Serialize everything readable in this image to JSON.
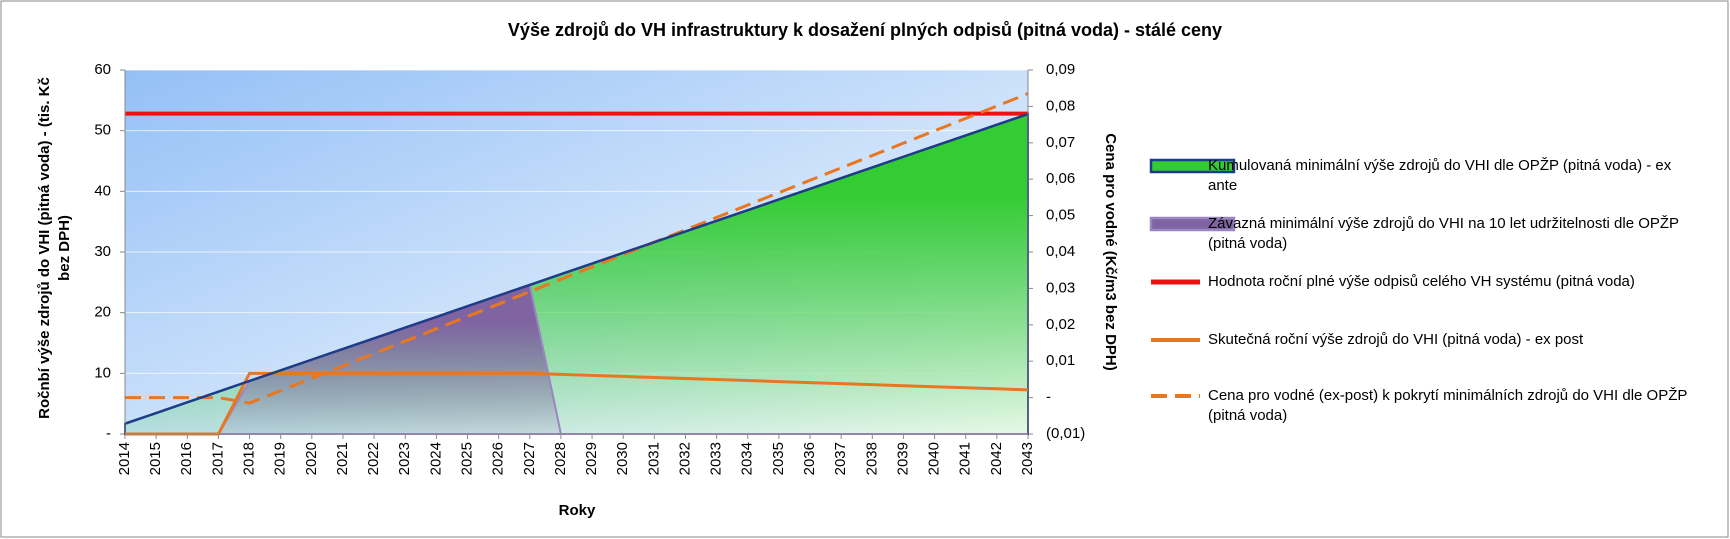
{
  "chart_data": {
    "type": "combo",
    "title": "Výše zdrojů do VH infrastruktury k dosažení plných odpisů (pitná voda) - stálé ceny",
    "x_label": "Roky",
    "y_label": "Ročnbí výše zdrojů do VHI  (pitná voda) - (tis. Kč bez DPH)",
    "y2_label": "Cena pro vodné  (Kč/m3 bez DPH)",
    "categories": [
      "2014",
      "2015",
      "2016",
      "2017",
      "2018",
      "2019",
      "2020",
      "2021",
      "2022",
      "2023",
      "2024",
      "2025",
      "2026",
      "2027",
      "2028",
      "2029",
      "2030",
      "2031",
      "2032",
      "2033",
      "2034",
      "2035",
      "2036",
      "2037",
      "2038",
      "2039",
      "2040",
      "2041",
      "2042",
      "2043"
    ],
    "ylim": [
      0,
      60
    ],
    "yticks": [
      {
        "value": 0,
        "label": "-"
      },
      10,
      20,
      30,
      40,
      50,
      60
    ],
    "y2lim": [
      -0.01,
      0.09
    ],
    "y2ticks": [
      {
        "value": -0.01,
        "label": "(0,01)"
      },
      {
        "value": 0,
        "label": "-"
      },
      {
        "value": 0.01,
        "label": "0,01"
      },
      {
        "value": 0.02,
        "label": "0,02"
      },
      {
        "value": 0.03,
        "label": "0,03"
      },
      {
        "value": 0.04,
        "label": "0,04"
      },
      {
        "value": 0.05,
        "label": "0,05"
      },
      {
        "value": 0.06,
        "label": "0,06"
      },
      {
        "value": 0.07,
        "label": "0,07"
      },
      {
        "value": 0.08,
        "label": "0,08"
      },
      {
        "value": 0.09,
        "label": "0,09"
      }
    ],
    "grid": true,
    "legend": "right",
    "series": [
      {
        "name": "Kumulovaná minimální výše zdrojů do VHI dle OPŽP (pitná voda) - ex ante",
        "type": "area",
        "color": "#33cc33",
        "edge": "#1f3c88",
        "values": [
          1.7,
          3.46,
          5.22,
          6.98,
          8.74,
          10.5,
          12.26,
          14.02,
          15.78,
          17.54,
          19.3,
          21.06,
          22.82,
          24.58,
          26.34,
          28.1,
          29.86,
          31.62,
          33.38,
          35.14,
          36.9,
          38.66,
          40.42,
          42.18,
          43.94,
          45.7,
          47.46,
          49.22,
          50.98,
          52.74
        ]
      },
      {
        "name": "Závazná minimální výše zdrojů do VHI na 10 let udržitelnosti dle OPŽP (pitná voda)",
        "type": "area",
        "color": "#8064a2",
        "edge": "#9b86c4",
        "values": [
          0,
          0,
          0,
          0,
          8.74,
          10.5,
          12.26,
          14.02,
          15.78,
          17.54,
          19.3,
          21.06,
          22.82,
          24.58,
          0,
          0,
          0,
          0,
          0,
          0,
          0,
          0,
          0,
          0,
          0,
          0,
          0,
          0,
          0,
          0
        ]
      },
      {
        "name": "Hodnota roční plné výše odpisů celého VH systému (pitná voda)",
        "type": "line",
        "color": "#ee1111",
        "width": 4,
        "values": [
          52.8,
          52.8,
          52.8,
          52.8,
          52.8,
          52.8,
          52.8,
          52.8,
          52.8,
          52.8,
          52.8,
          52.8,
          52.8,
          52.8,
          52.8,
          52.8,
          52.8,
          52.8,
          52.8,
          52.8,
          52.8,
          52.8,
          52.8,
          52.8,
          52.8,
          52.8,
          52.8,
          52.8,
          52.8,
          52.8
        ]
      },
      {
        "name": "Skutečná roční výše zdrojů do VHI (pitná voda) - ex post",
        "type": "line",
        "color": "#e87722",
        "width": 3,
        "values": [
          0,
          0,
          0,
          0,
          10,
          10,
          10,
          10,
          10,
          10,
          10,
          10,
          10,
          10,
          9.83,
          9.66,
          9.49,
          9.32,
          9.15,
          8.98,
          8.81,
          8.64,
          8.47,
          8.3,
          8.13,
          7.96,
          7.79,
          7.62,
          7.45,
          7.28
        ]
      },
      {
        "name": "Cena pro vodné (ex-post) k pokrytí minimálních zdrojů do VHI dle OPŽP (pitná voda)",
        "type": "line",
        "color": "#e87722",
        "width": 3,
        "dash": true,
        "axis": "y2",
        "values": [
          0,
          0,
          0,
          0,
          -0.0015,
          0.0019,
          0.0053,
          0.0087,
          0.0121,
          0.0155,
          0.0189,
          0.0223,
          0.0257,
          0.0291,
          0.0325,
          0.0359,
          0.0393,
          0.0427,
          0.0461,
          0.0495,
          0.0529,
          0.0563,
          0.0597,
          0.0631,
          0.0665,
          0.0699,
          0.0733,
          0.0767,
          0.0801,
          0.0835
        ]
      }
    ]
  }
}
